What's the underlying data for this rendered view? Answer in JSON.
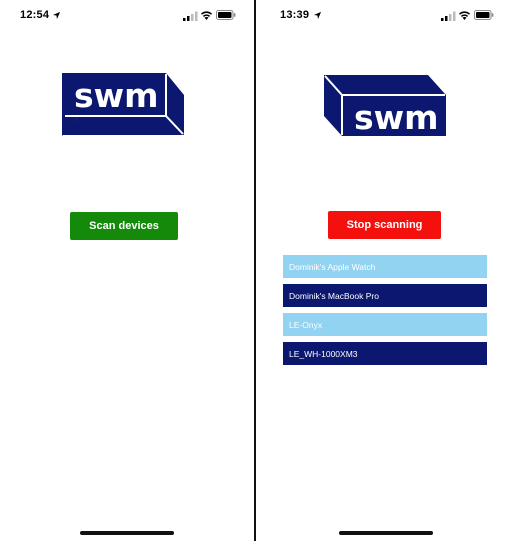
{
  "left": {
    "status_time": "12:54",
    "logo_text": "swm",
    "scan_button_label": "Scan devices"
  },
  "right": {
    "status_time": "13:39",
    "logo_text": "swm",
    "stop_button_label": "Stop scanning",
    "devices": [
      {
        "name": "Dominik's Apple Watch",
        "style": "light"
      },
      {
        "name": "Dominik's MacBook Pro",
        "style": "dark"
      },
      {
        "name": "LE-Onyx",
        "style": "light"
      },
      {
        "name": "LE_WH-1000XM3",
        "style": "dark"
      }
    ]
  },
  "colors": {
    "brand_navy": "#0c1870",
    "scan_green": "#158a0a",
    "stop_red": "#f4100d",
    "device_light": "#91d3f1",
    "device_dark": "#0c1870"
  },
  "icons": [
    "location-arrow-icon",
    "cellular-signal-icon",
    "wifi-icon",
    "battery-icon"
  ]
}
